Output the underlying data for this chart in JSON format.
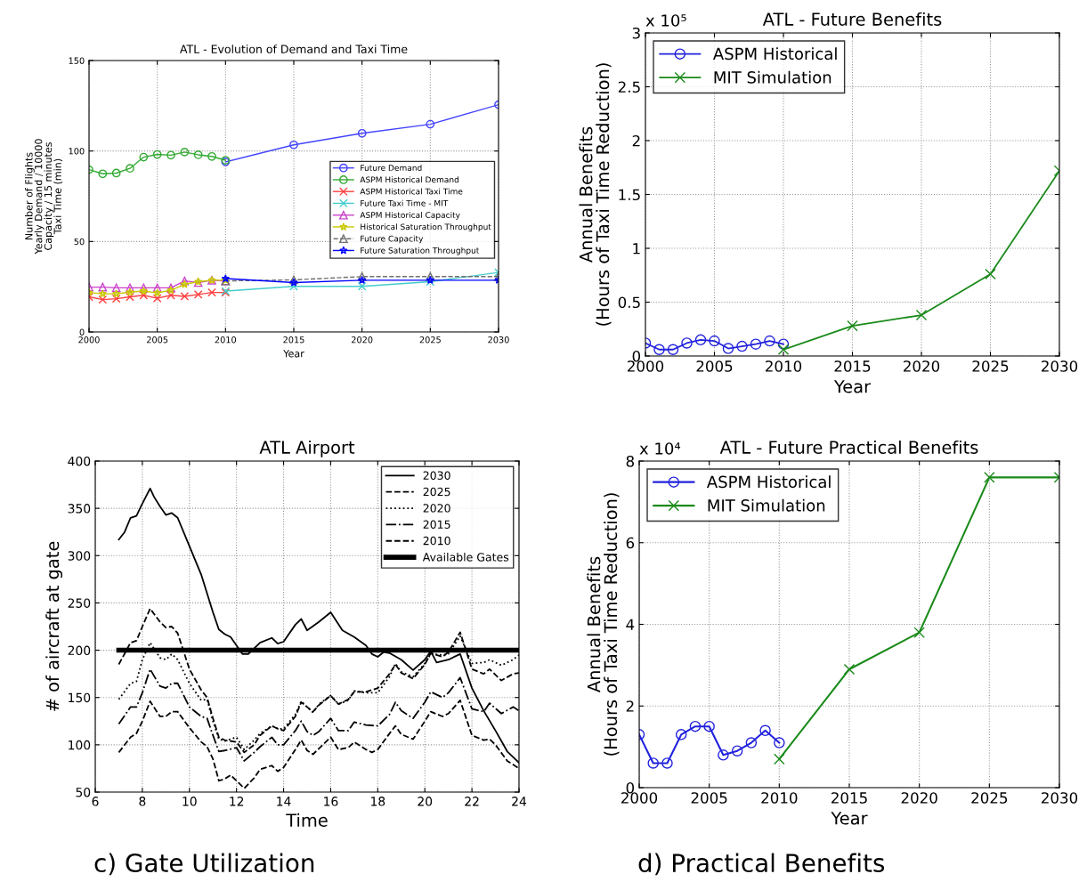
{
  "chart_data": [
    {
      "type": "line",
      "title": "ATL - Evolution of Demand and Taxi Time",
      "xlabel": "Year",
      "ylabel": "Number of Flights\nYearly Demand / 10000\nCapacity / 15 minutes\nTaxi Time (min)",
      "xlim": [
        2000,
        2030
      ],
      "ylim": [
        0,
        150
      ],
      "xticks": [
        2000,
        2005,
        2010,
        2015,
        2020,
        2025,
        2030
      ],
      "yticks": [
        0,
        50,
        100,
        150
      ],
      "grid": true,
      "legend": "right",
      "series": [
        {
          "name": "Future Demand",
          "color": "#4444ff",
          "marker": "circle",
          "line_style": "solid",
          "x": [
            2010,
            2015,
            2020,
            2025,
            2030
          ],
          "values": [
            94,
            103.4,
            109.8,
            114.8,
            125.6
          ]
        },
        {
          "name": "ASPM Historical Demand",
          "color": "#33aa33",
          "marker": "circle",
          "line_style": "solid",
          "x": [
            2000,
            2001,
            2002,
            2003,
            2004,
            2005,
            2006,
            2007,
            2008,
            2009,
            2010
          ],
          "values": [
            89.7,
            87.4,
            87.8,
            90.4,
            96.6,
            98.1,
            97.7,
            99.4,
            97.9,
            97.0,
            94.9
          ]
        },
        {
          "name": "ASPM Historical Taxi Time",
          "color": "#ff4040",
          "marker": "cross",
          "line_style": "solid",
          "x": [
            2000,
            2001,
            2002,
            2003,
            2004,
            2005,
            2006,
            2007,
            2008,
            2009,
            2010
          ],
          "values": [
            19.4,
            17.9,
            18.4,
            19.4,
            20.3,
            18.6,
            20.3,
            19.7,
            20.7,
            21.8,
            21.8
          ]
        },
        {
          "name": "Future Taxi Time - MIT",
          "color": "#44cccc",
          "marker": "cross",
          "line_style": "solid",
          "x": [
            2010,
            2015,
            2020,
            2025,
            2030
          ],
          "values": [
            22.6,
            25.2,
            25.2,
            27.8,
            32.9
          ]
        },
        {
          "name": "ASPM Historical Capacity",
          "color": "#cc44cc",
          "marker": "triangle",
          "line_style": "solid",
          "x": [
            2000,
            2001,
            2002,
            2003,
            2004,
            2005,
            2006,
            2007,
            2008,
            2009,
            2010
          ],
          "values": [
            24.8,
            24.8,
            24.4,
            24.4,
            24.4,
            24.4,
            24.4,
            28.2,
            27.3,
            28.6,
            28.2
          ]
        },
        {
          "name": "Historical Saturation Throughput",
          "color": "#c8c800",
          "marker": "star",
          "line_style": "solid",
          "x": [
            2000,
            2001,
            2002,
            2003,
            2004,
            2005,
            2006,
            2007,
            2008,
            2009,
            2010
          ],
          "values": [
            21.8,
            21.1,
            21.1,
            22.0,
            22.6,
            21.6,
            23.1,
            26.3,
            27.8,
            28.6,
            28.6
          ]
        },
        {
          "name": "Future Capacity",
          "color": "#707070",
          "marker": "triangle",
          "line_style": "dashed",
          "x": [
            2010,
            2015,
            2020,
            2025,
            2030
          ],
          "values": [
            28.2,
            28.8,
            30.6,
            30.6,
            30.6
          ]
        },
        {
          "name": "Future Saturation Throughput",
          "color": "#0000ff",
          "marker": "star",
          "line_style": "solid",
          "x": [
            2010,
            2015,
            2020,
            2025,
            2030
          ],
          "values": [
            29.5,
            27.3,
            28.6,
            28.6,
            28.6
          ]
        }
      ]
    },
    {
      "type": "line",
      "title": "ATL - Future Benefits",
      "xlabel": "Year",
      "ylabel": "Annual Benefits\n(Hours of Taxi Time Reduction)",
      "annotations": [
        "x 10⁵"
      ],
      "xlim": [
        2000,
        2030
      ],
      "ylim": [
        0,
        3
      ],
      "xticks": [
        2000,
        2005,
        2010,
        2015,
        2020,
        2025,
        2030
      ],
      "yticks": [
        0,
        0.5,
        1,
        1.5,
        2,
        2.5,
        3
      ],
      "grid": true,
      "legend": "top left",
      "series": [
        {
          "name": "ASPM Historical",
          "color": "#2222dd",
          "marker": "circle",
          "line_style": "solid",
          "x": [
            2000,
            2001,
            2002,
            2003,
            2004,
            2005,
            2006,
            2007,
            2008,
            2009,
            2010
          ],
          "values": [
            0.12,
            0.06,
            0.06,
            0.12,
            0.15,
            0.14,
            0.07,
            0.09,
            0.11,
            0.14,
            0.11
          ]
        },
        {
          "name": "MIT Simulation",
          "color": "#1a8a1a",
          "marker": "cross",
          "line_style": "solid",
          "x": [
            2010,
            2015,
            2020,
            2025,
            2030
          ],
          "values": [
            0.06,
            0.28,
            0.38,
            0.76,
            1.72
          ]
        }
      ]
    },
    {
      "type": "line",
      "title": "ATL Airport",
      "xlabel": "Time",
      "ylabel": "# of aircraft at gate",
      "annotations": [
        "c) Gate Utilization"
      ],
      "xlim": [
        6,
        24
      ],
      "ylim": [
        50,
        400
      ],
      "xticks": [
        6,
        8,
        10,
        12,
        14,
        16,
        18,
        20,
        22,
        24
      ],
      "yticks": [
        50,
        100,
        150,
        200,
        250,
        300,
        350,
        400
      ],
      "grid": true,
      "legend": "top right",
      "ref_lines": [
        {
          "axis": "y",
          "value": 200,
          "label": "Available Gates",
          "color": "#000000"
        }
      ],
      "series": [
        {
          "name": "2030",
          "color": "#000000",
          "marker": "none",
          "line_style": "solid",
          "x": [
            7,
            7.25,
            7.5,
            7.75,
            8,
            8.33,
            8.5,
            8.75,
            9,
            9.25,
            9.5,
            10,
            10.5,
            11,
            11.25,
            11.5,
            11.75,
            12,
            12.25,
            12.5,
            13,
            13.5,
            13.75,
            14,
            14.5,
            14.75,
            15,
            15.5,
            16,
            16.5,
            17,
            17.5,
            17.75,
            18,
            18.25,
            18.5,
            19,
            19.5,
            20,
            20.25,
            20.5,
            21,
            21.5,
            22,
            22.5,
            23,
            23.5,
            24
          ],
          "values": [
            317,
            325,
            340,
            342,
            355,
            371,
            362,
            352,
            343,
            345,
            340,
            310,
            280,
            240,
            222,
            217,
            214,
            205,
            196,
            196,
            208,
            213,
            207,
            209,
            227,
            233,
            221,
            230,
            240,
            221,
            214,
            205,
            196,
            193,
            198,
            197,
            190,
            179,
            190,
            199,
            187,
            190,
            196,
            160,
            136,
            115,
            93,
            81
          ]
        },
        {
          "name": "2025",
          "color": "#000000",
          "marker": "none",
          "line_style": "dashed",
          "x": [
            7,
            7.5,
            7.75,
            8,
            8.33,
            8.75,
            9,
            9.25,
            9.5,
            10,
            10.5,
            10.75,
            11,
            11.25,
            11.5,
            12,
            12.33,
            12.75,
            13,
            13.5,
            13.75,
            14,
            14.5,
            14.75,
            15,
            15.25,
            15.5,
            16,
            16.33,
            16.75,
            17,
            17.5,
            18,
            18.5,
            18.75,
            19,
            19.5,
            20,
            20.25,
            20.75,
            21,
            21.5,
            22,
            22.5,
            22.75,
            23.25,
            23.75,
            24
          ],
          "values": [
            185,
            208,
            210,
            225,
            244,
            230,
            224,
            225,
            218,
            180,
            158,
            150,
            128,
            108,
            105,
            103,
            92,
            100,
            110,
            120,
            117,
            115,
            130,
            145,
            140,
            135,
            142,
            152,
            143,
            148,
            156,
            156,
            160,
            175,
            185,
            176,
            170,
            185,
            197,
            193,
            198,
            219,
            180,
            175,
            180,
            168,
            175,
            176
          ]
        },
        {
          "name": "2020",
          "color": "#000000",
          "marker": "none",
          "line_style": "dotted",
          "x": [
            7,
            7.5,
            7.75,
            8,
            8.33,
            8.75,
            9,
            9.25,
            9.5,
            10,
            10.5,
            10.75,
            11,
            11.25,
            11.5,
            12,
            12.33,
            12.75,
            13,
            13.5,
            13.75,
            14,
            14.5,
            14.75,
            15,
            15.25,
            15.5,
            16,
            16.33,
            16.75,
            17,
            17.5,
            18,
            18.5,
            18.75,
            19,
            19.5,
            20,
            20.25,
            20.75,
            21,
            21.5,
            22,
            22.5,
            22.75,
            23.25,
            23.75,
            24
          ],
          "values": [
            148,
            165,
            167,
            190,
            208,
            192,
            190,
            196,
            190,
            165,
            147,
            148,
            125,
            106,
            104,
            108,
            95,
            105,
            112,
            120,
            117,
            117,
            132,
            146,
            140,
            134,
            143,
            152,
            143,
            147,
            157,
            155,
            155,
            172,
            186,
            177,
            172,
            186,
            196,
            195,
            196,
            215,
            186,
            187,
            190,
            184,
            190,
            195
          ]
        },
        {
          "name": "2015",
          "color": "#000000",
          "marker": "none",
          "line_style": "dashdot",
          "x": [
            7,
            7.5,
            7.75,
            8,
            8.33,
            8.75,
            9,
            9.25,
            9.5,
            10,
            10.5,
            10.75,
            11,
            11.25,
            11.5,
            12,
            12.33,
            12.75,
            13,
            13.5,
            13.75,
            14,
            14.5,
            14.75,
            15,
            15.25,
            15.5,
            16,
            16.33,
            16.75,
            17,
            17.5,
            18,
            18.5,
            18.75,
            19,
            19.5,
            20,
            20.25,
            20.75,
            21,
            21.5,
            22,
            22.5,
            22.75,
            23.25,
            23.75,
            24
          ],
          "values": [
            122,
            140,
            140,
            155,
            180,
            162,
            160,
            165,
            165,
            140,
            130,
            128,
            110,
            93,
            94,
            97,
            83,
            92,
            98,
            108,
            100,
            100,
            115,
            125,
            114,
            110,
            114,
            128,
            115,
            115,
            124,
            121,
            120,
            132,
            145,
            136,
            128,
            145,
            156,
            150,
            155,
            171,
            138,
            135,
            144,
            133,
            140,
            136
          ]
        },
        {
          "name": "2010",
          "color": "#000000",
          "marker": "none",
          "line_style": "dashed",
          "x": [
            7,
            7.5,
            7.75,
            8,
            8.33,
            8.75,
            9,
            9.25,
            9.5,
            10,
            10.5,
            10.75,
            11,
            11.25,
            11.5,
            11.75,
            12,
            12.33,
            12.75,
            13,
            13.5,
            13.75,
            14,
            14.5,
            14.75,
            15,
            15.25,
            15.5,
            16,
            16.33,
            16.75,
            17,
            17.5,
            17.75,
            18,
            18.5,
            18.75,
            19,
            19.5,
            20,
            20.25,
            20.75,
            21,
            21.5,
            22,
            22.5,
            22.75,
            23,
            23.5,
            24
          ],
          "values": [
            92,
            108,
            112,
            125,
            146,
            130,
            130,
            135,
            135,
            118,
            103,
            98,
            85,
            62,
            64,
            68,
            62,
            54,
            65,
            74,
            78,
            72,
            76,
            95,
            105,
            94,
            90,
            96,
            108,
            95,
            97,
            103,
            95,
            92,
            95,
            112,
            120,
            111,
            106,
            125,
            135,
            130,
            133,
            147,
            110,
            105,
            106,
            100,
            83,
            75
          ]
        }
      ]
    },
    {
      "type": "line",
      "title": "ATL - Future Practical Benefits",
      "xlabel": "Year",
      "ylabel": "Annual Benefits\n(Hours of Taxi Time Reduction)",
      "annotations": [
        "x 10⁴",
        "d) Practical Benefits"
      ],
      "xlim": [
        2000,
        2030
      ],
      "ylim": [
        0,
        8
      ],
      "xticks": [
        2000,
        2005,
        2010,
        2015,
        2020,
        2025,
        2030
      ],
      "yticks": [
        0,
        2,
        4,
        6,
        8
      ],
      "grid": true,
      "legend": "top left",
      "series": [
        {
          "name": "ASPM Historical",
          "color": "#2222dd",
          "marker": "circle",
          "line_style": "solid",
          "x": [
            2000,
            2001,
            2002,
            2003,
            2004,
            2005,
            2006,
            2007,
            2008,
            2009,
            2010
          ],
          "values": [
            1.3,
            0.6,
            0.6,
            1.3,
            1.5,
            1.5,
            0.8,
            0.9,
            1.1,
            1.4,
            1.1
          ]
        },
        {
          "name": "MIT Simulation",
          "color": "#1a8a1a",
          "marker": "cross",
          "line_style": "solid",
          "x": [
            2010,
            2015,
            2020,
            2025,
            2030
          ],
          "values": [
            0.7,
            2.9,
            3.8,
            7.6,
            7.6
          ]
        }
      ]
    }
  ]
}
